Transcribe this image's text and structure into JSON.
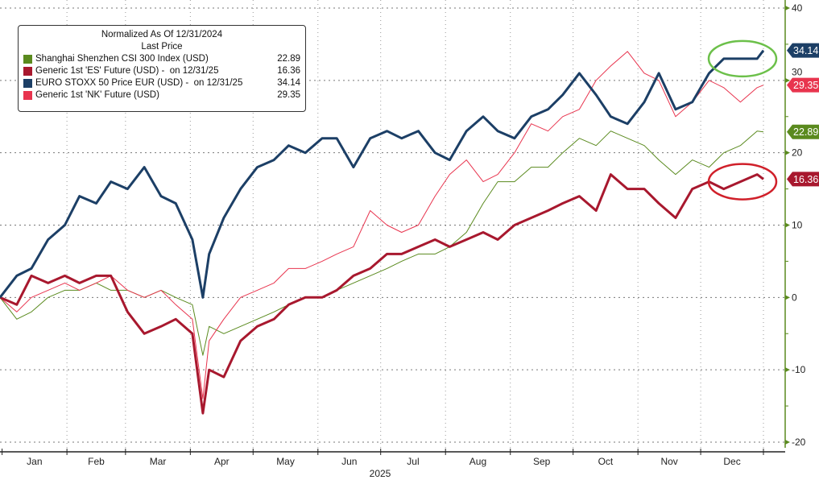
{
  "chart_data": {
    "type": "line",
    "legend": {
      "title": "Normalized As Of 12/31/2024",
      "subtitle": "Last Price",
      "placement": "top-left"
    },
    "x_axis": {
      "tick_labels": [
        "Jan",
        "Feb",
        "Mar",
        "Apr",
        "May",
        "Jun",
        "Jul",
        "Aug",
        "Sep",
        "Oct",
        "Nov",
        "Dec"
      ],
      "year_label": "2025",
      "range": [
        "2024-12-31",
        "2025-12-31"
      ]
    },
    "y_axis": {
      "position": "right",
      "ylim": [
        -20,
        40
      ],
      "ticks": [
        40,
        30,
        20,
        10,
        0,
        -10,
        -20
      ],
      "tick_labels": [
        "40",
        "30",
        "20",
        "10",
        "0",
        "-10",
        "-20"
      ],
      "color": "#5a8a1e"
    },
    "grid": true,
    "x": [
      "2024-12-31",
      "2025-01-08",
      "2025-01-15",
      "2025-01-23",
      "2025-01-31",
      "2025-02-07",
      "2025-02-15",
      "2025-02-22",
      "2025-03-02",
      "2025-03-10",
      "2025-03-18",
      "2025-03-25",
      "2025-04-02",
      "2025-04-07",
      "2025-04-10",
      "2025-04-17",
      "2025-04-25",
      "2025-05-03",
      "2025-05-11",
      "2025-05-18",
      "2025-05-26",
      "2025-06-03",
      "2025-06-10",
      "2025-06-18",
      "2025-06-26",
      "2025-07-04",
      "2025-07-11",
      "2025-07-19",
      "2025-07-27",
      "2025-08-03",
      "2025-08-11",
      "2025-08-19",
      "2025-08-26",
      "2025-09-03",
      "2025-09-11",
      "2025-09-19",
      "2025-09-26",
      "2025-10-04",
      "2025-10-12",
      "2025-10-19",
      "2025-10-27",
      "2025-11-04",
      "2025-11-11",
      "2025-11-19",
      "2025-11-27",
      "2025-12-05",
      "2025-12-12",
      "2025-12-20",
      "2025-12-28",
      "2025-12-31"
    ],
    "series": [
      {
        "name": "Shanghai Shenzhen CSI 300 Index (USD)",
        "last": "22.89",
        "color": "#5a8a1e",
        "width": 1,
        "values": [
          0,
          -3,
          -2,
          0,
          1,
          1,
          2,
          1,
          1,
          0,
          1,
          0,
          -1,
          -8,
          -4,
          -5,
          -4,
          -3,
          -2,
          -1,
          0,
          0,
          1,
          2,
          3,
          4,
          5,
          6,
          6,
          7,
          9,
          13,
          16,
          16,
          18,
          18,
          20,
          22,
          21,
          23,
          22,
          21,
          19,
          17,
          19,
          18,
          20,
          21,
          23,
          22.89
        ]
      },
      {
        "name": "Generic 1st 'ES' Future (USD) -  on 12/31/25",
        "last": "16.36",
        "color": "#a8182e",
        "width": 3,
        "values": [
          0,
          -1,
          3,
          2,
          3,
          2,
          3,
          3,
          -2,
          -5,
          -4,
          -3,
          -5,
          -16,
          -10,
          -11,
          -6,
          -4,
          -3,
          -1,
          0,
          0,
          1,
          3,
          4,
          6,
          6,
          7,
          8,
          7,
          8,
          9,
          8,
          10,
          11,
          12,
          13,
          14,
          12,
          17,
          15,
          15,
          13,
          11,
          15,
          16,
          15,
          16,
          17,
          16.36
        ]
      },
      {
        "name": "EURO STOXX 50 Price EUR (USD) -  on 12/31/25",
        "last": "34.14",
        "color": "#1c3f66",
        "width": 3,
        "values": [
          0,
          3,
          4,
          8,
          10,
          14,
          13,
          16,
          15,
          18,
          14,
          13,
          8,
          0,
          6,
          11,
          15,
          18,
          19,
          21,
          20,
          22,
          22,
          18,
          22,
          23,
          22,
          23,
          20,
          19,
          23,
          25,
          23,
          22,
          25,
          26,
          28,
          31,
          28,
          25,
          24,
          27,
          31,
          26,
          27,
          31,
          33,
          33,
          33,
          34.14
        ]
      },
      {
        "name": "Generic 1st 'NK' Future (USD)",
        "last": "29.35",
        "color": "#e8344e",
        "width": 1,
        "values": [
          0,
          -2,
          0,
          1,
          2,
          1,
          2,
          3,
          1,
          0,
          1,
          -1,
          -3,
          -14,
          -6,
          -3,
          0,
          1,
          2,
          4,
          4,
          5,
          6,
          7,
          12,
          10,
          9,
          10,
          14,
          17,
          19,
          16,
          17,
          20,
          24,
          23,
          25,
          26,
          30,
          32,
          34,
          31,
          30,
          25,
          27,
          30,
          29,
          27,
          29,
          29.35
        ]
      }
    ],
    "annotations": [
      {
        "shape": "ellipse",
        "color": "#6cc04a",
        "target": "EURO STOXX 50 Price EUR (USD) -  on 12/31/25"
      },
      {
        "shape": "ellipse",
        "color": "#d0202a",
        "target": "Generic 1st 'ES' Future (USD) -  on 12/31/25"
      }
    ]
  }
}
